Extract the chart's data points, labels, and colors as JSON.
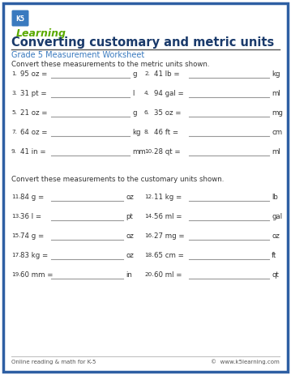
{
  "bg_color": "#ffffff",
  "border_color": "#2e5fa3",
  "title": "Converting customary and metric units",
  "subtitle": "Grade 5 Measurement Worksheet",
  "instruction1": "Convert these measurements to the metric units shown.",
  "instruction2": "Convert these measurements to the customary units shown.",
  "section1_items": [
    {
      "num": "1.",
      "left": "95 oz =",
      "unit_left": "g",
      "num2": "2.",
      "right": "41 lb =",
      "unit_right": "kg"
    },
    {
      "num": "3.",
      "left": "31 pt =",
      "unit_left": "l",
      "num2": "4.",
      "right": "94 gal =",
      "unit_right": "ml"
    },
    {
      "num": "5.",
      "left": "21 oz =",
      "unit_left": "g",
      "num2": "6.",
      "right": "35 oz =",
      "unit_right": "mg"
    },
    {
      "num": "7.",
      "left": "64 oz =",
      "unit_left": "kg",
      "num2": "8.",
      "right": "46 ft =",
      "unit_right": "cm"
    },
    {
      "num": "9.",
      "left": "41 in =",
      "unit_left": "mm",
      "num2": "10.",
      "right": "28 qt =",
      "unit_right": "ml"
    }
  ],
  "section2_items": [
    {
      "num": "11.",
      "left": "84 g =",
      "unit_left": "oz",
      "num2": "12.",
      "right": "11 kg =",
      "unit_right": "lb"
    },
    {
      "num": "13.",
      "left": "36 l =",
      "unit_left": "pt",
      "num2": "14.",
      "right": "56 ml =",
      "unit_right": "gal"
    },
    {
      "num": "15.",
      "left": "74 g =",
      "unit_left": "oz",
      "num2": "16.",
      "right": "27 mg =",
      "unit_right": "oz"
    },
    {
      "num": "17.",
      "left": "83 kg =",
      "unit_left": "oz",
      "num2": "18.",
      "right": "65 cm =",
      "unit_right": "ft"
    },
    {
      "num": "19.",
      "left": "60 mm =",
      "unit_left": "in",
      "num2": "20.",
      "right": "60 ml =",
      "unit_right": "qt"
    }
  ],
  "footer_left": "Online reading & math for K-5",
  "footer_right": "©  www.k5learning.com",
  "title_color": "#1a3a6b",
  "subtitle_color": "#3a7abf",
  "text_color": "#333333",
  "line_color": "#999999",
  "title_fontsize": 10.5,
  "subtitle_fontsize": 7.0,
  "body_fontsize": 6.2,
  "num_fontsize": 5.2,
  "footer_fontsize": 5.0
}
